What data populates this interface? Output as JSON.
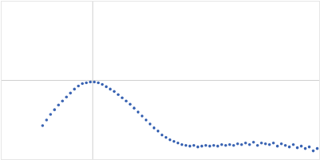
{
  "chart_data": {
    "type": "scatter",
    "x": [
      52,
      57,
      62,
      67,
      72,
      77,
      82,
      87,
      92,
      97,
      102,
      107,
      112,
      117,
      122,
      127,
      132,
      137,
      142,
      147,
      152,
      157,
      162,
      167,
      172,
      177,
      182,
      187,
      192,
      197,
      202,
      207,
      212,
      217,
      222,
      227,
      232,
      237,
      242,
      247,
      252,
      257,
      262,
      267,
      272,
      277,
      282,
      287,
      292,
      297,
      302,
      307,
      312,
      317,
      322,
      327,
      332,
      337,
      342,
      347,
      352,
      357,
      362,
      367,
      372,
      377,
      382,
      387,
      392,
      397
    ],
    "values": [
      43,
      50,
      57,
      63,
      69,
      74,
      79,
      84,
      89,
      93,
      96,
      97,
      98,
      98,
      97,
      95,
      92,
      89,
      86,
      82,
      78,
      74,
      70,
      65,
      60,
      55,
      50,
      45,
      40,
      36,
      31,
      28,
      25,
      23,
      21,
      19,
      18,
      17,
      18,
      16,
      17,
      18,
      17,
      18,
      17,
      19,
      18,
      19,
      18,
      20,
      19,
      21,
      19,
      22,
      18,
      21,
      20,
      19,
      21,
      17,
      20,
      18,
      16,
      19,
      15,
      17,
      14,
      16,
      11,
      14
    ],
    "color": "#3a64b3",
    "marker": "circle",
    "xlim": [
      0,
      400
    ],
    "ylim": [
      0,
      200
    ],
    "xticks": [
      115
    ],
    "yticks": [
      100
    ],
    "grid": true,
    "tick_labels": false
  }
}
